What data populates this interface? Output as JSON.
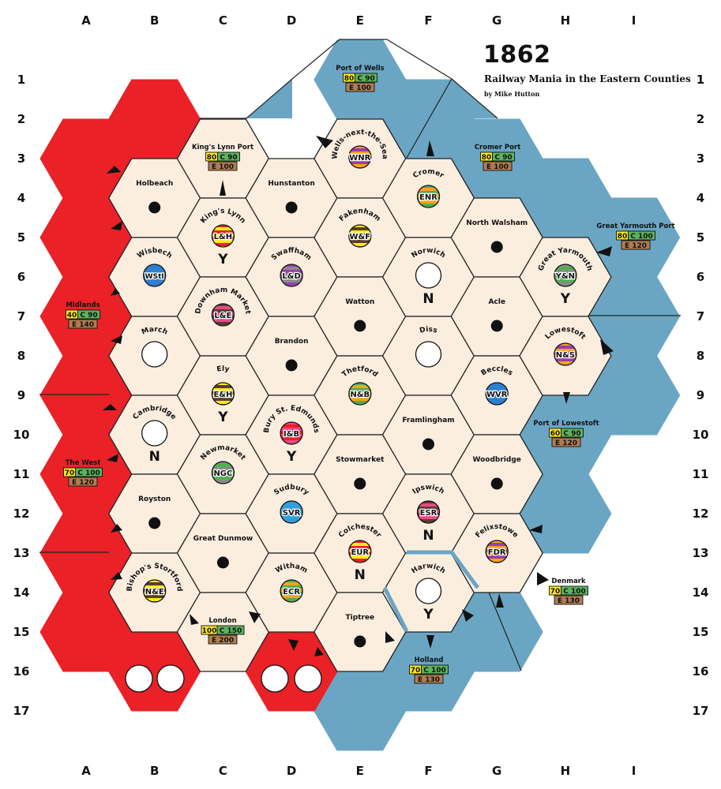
{
  "title": "1862",
  "subtitle": "Railway Mania in the Eastern Counties",
  "credit": "by Mike Hutton",
  "columns": [
    "A",
    "B",
    "C",
    "D",
    "E",
    "F",
    "G",
    "H",
    "I"
  ],
  "rows": [
    "1",
    "2",
    "3",
    "4",
    "5",
    "6",
    "7",
    "8",
    "9",
    "10",
    "11",
    "12",
    "13",
    "14",
    "15",
    "16",
    "17"
  ],
  "colors": {
    "offboard_red": "#ea2127",
    "sea_blue": "#6aa6c4",
    "hex_land": "#fbeedf",
    "outline": "#222222",
    "rev_yellow": "#ffe91a",
    "rev_green": "#5cb35e",
    "rev_brown": "#b07c50"
  },
  "towns": [
    "Holbeach",
    "Hunstanton",
    "Watton",
    "Brandon",
    "North Walsham",
    "Acle",
    "Framlingham",
    "Stowmarket",
    "Woodbridge",
    "Royston",
    "Great Dunmow",
    "Tiptree"
  ],
  "cities": [
    {
      "name": "King's Lynn",
      "code": "L&H",
      "label": "Y"
    },
    {
      "name": "Wells-next-the-Sea",
      "code": "WNR"
    },
    {
      "name": "Fakenham",
      "code": "W&F"
    },
    {
      "name": "Cromer",
      "code": "ENR"
    },
    {
      "name": "Wisbech",
      "code": "WStI"
    },
    {
      "name": "Swaffham",
      "code": "L&D"
    },
    {
      "name": "Norwich",
      "code": "",
      "label": "N"
    },
    {
      "name": "Great Yarmouth",
      "code": "Y&N",
      "label": "Y"
    },
    {
      "name": "Downham Market",
      "code": "L&E"
    },
    {
      "name": "March",
      "code": ""
    },
    {
      "name": "Diss",
      "code": ""
    },
    {
      "name": "Lowestoft",
      "code": "N&S"
    },
    {
      "name": "Ely",
      "code": "E&H",
      "label": "Y"
    },
    {
      "name": "Thetford",
      "code": "N&B"
    },
    {
      "name": "Beccles",
      "code": "WVR"
    },
    {
      "name": "Cambridge",
      "code": "",
      "label": "N"
    },
    {
      "name": "Bury St. Edmunds",
      "code": "I&B",
      "label": "Y"
    },
    {
      "name": "Newmarket",
      "code": "NGC"
    },
    {
      "name": "Ipswich",
      "code": "ESR",
      "label": "N"
    },
    {
      "name": "Sudbury",
      "code": "SVR"
    },
    {
      "name": "Colchester",
      "code": "EUR",
      "label": "N"
    },
    {
      "name": "Felixstowe",
      "code": "FDR"
    },
    {
      "name": "Bishop's Stortford",
      "code": "N&E"
    },
    {
      "name": "Witham",
      "code": "ECR"
    },
    {
      "name": "Harwich",
      "code": "",
      "label": "Y"
    }
  ],
  "offboards": [
    {
      "name": "Port of Wells",
      "y": "80",
      "g": "C 90",
      "e": "E 100"
    },
    {
      "name": "King's Lynn Port",
      "y": "80",
      "g": "C 90",
      "e": "E 100"
    },
    {
      "name": "Cromer Port",
      "y": "80",
      "g": "C 90",
      "e": "E 100"
    },
    {
      "name": "Great Yarmouth Port",
      "y": "80",
      "g": "C 100",
      "e": "E 120"
    },
    {
      "name": "Midlands",
      "y": "40",
      "g": "C 90",
      "e": "E 140"
    },
    {
      "name": "The West",
      "y": "70",
      "g": "C 100",
      "e": "E 120"
    },
    {
      "name": "Port of Lowestoft",
      "y": "60",
      "g": "C 90",
      "e": "E 120"
    },
    {
      "name": "Denmark",
      "y": "70",
      "g": "C 100",
      "e": "E 130"
    },
    {
      "name": "London",
      "y": "100",
      "g": "C 150",
      "e": "E 200"
    },
    {
      "name": "Holland",
      "y": "70",
      "g": "C 100",
      "e": "E 130"
    }
  ]
}
